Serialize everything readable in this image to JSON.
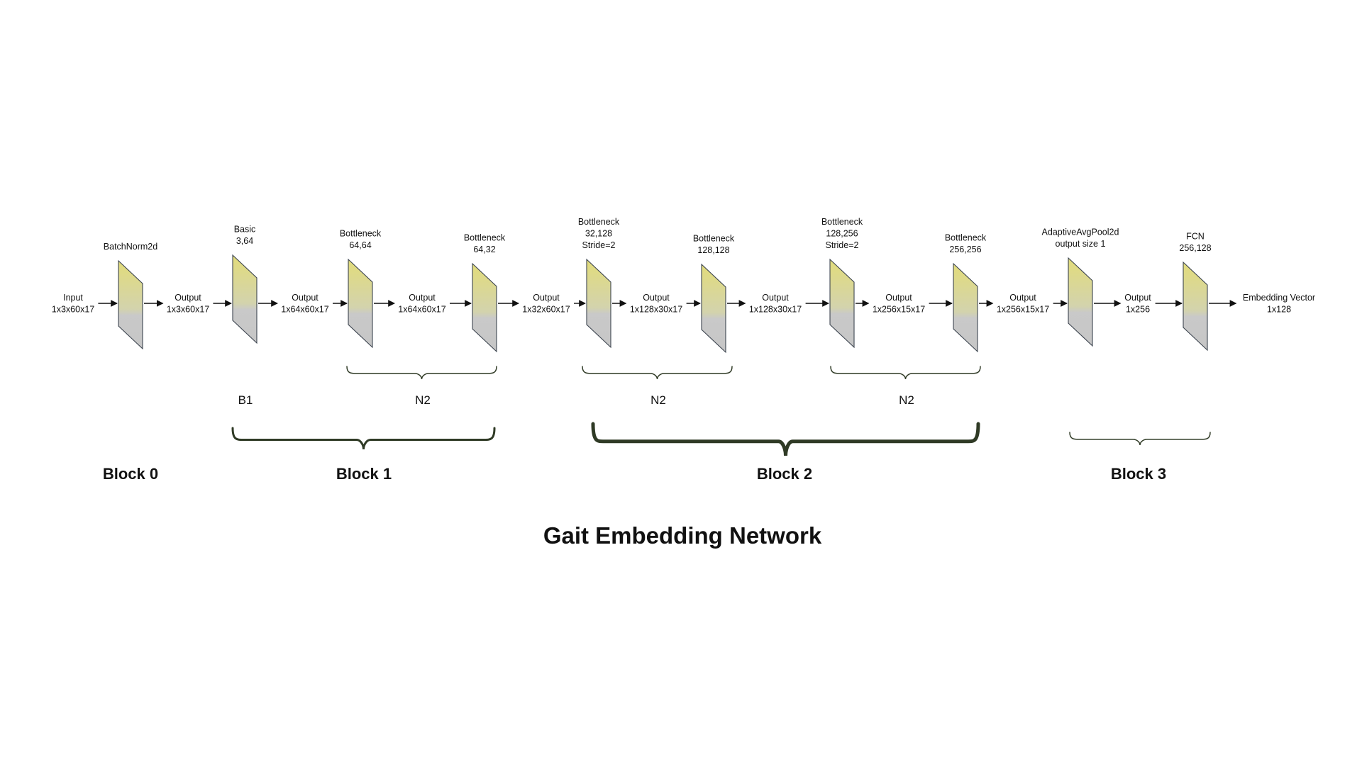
{
  "title": "Gait Embedding Network",
  "colors": {
    "layer_top": "#e2dc7a",
    "layer_bottom": "#c9c9c9",
    "brace": "#2f3a25",
    "arrow": "#111111"
  },
  "nodes": [
    {
      "id": "input",
      "kind": "text",
      "lines": [
        "Input",
        "1x3x60x17"
      ]
    },
    {
      "id": "bn",
      "kind": "layer",
      "lines": [
        "BatchNorm2d"
      ]
    },
    {
      "id": "out0",
      "kind": "text",
      "lines": [
        "Output",
        "1x3x60x17"
      ]
    },
    {
      "id": "basic",
      "kind": "layer",
      "lines": [
        "Basic",
        "3,64"
      ]
    },
    {
      "id": "out1",
      "kind": "text",
      "lines": [
        "Output",
        "1x64x60x17"
      ]
    },
    {
      "id": "bn1",
      "kind": "layer",
      "lines": [
        "Bottleneck",
        "64,64"
      ]
    },
    {
      "id": "out2",
      "kind": "text",
      "lines": [
        "Output",
        "1x64x60x17"
      ]
    },
    {
      "id": "bn2",
      "kind": "layer",
      "lines": [
        "Bottleneck",
        "64,32"
      ]
    },
    {
      "id": "out3",
      "kind": "text",
      "lines": [
        "Output",
        "1x32x60x17"
      ]
    },
    {
      "id": "bn3",
      "kind": "layer",
      "lines": [
        "Bottleneck",
        "32,128",
        "Stride=2"
      ]
    },
    {
      "id": "out4",
      "kind": "text",
      "lines": [
        "Output",
        "1x128x30x17"
      ]
    },
    {
      "id": "bn4",
      "kind": "layer",
      "lines": [
        "Bottleneck",
        "128,128"
      ]
    },
    {
      "id": "out5",
      "kind": "text",
      "lines": [
        "Output",
        "1x128x30x17"
      ]
    },
    {
      "id": "bn5",
      "kind": "layer",
      "lines": [
        "Bottleneck",
        "128,256",
        "Stride=2"
      ]
    },
    {
      "id": "out6",
      "kind": "text",
      "lines": [
        "Output",
        "1x256x15x17"
      ]
    },
    {
      "id": "bn6",
      "kind": "layer",
      "lines": [
        "Bottleneck",
        "256,256"
      ]
    },
    {
      "id": "out7",
      "kind": "text",
      "lines": [
        "Output",
        "1x256x15x17"
      ]
    },
    {
      "id": "pool",
      "kind": "layer",
      "lines": [
        "AdaptiveAvgPool2d",
        "output size 1"
      ]
    },
    {
      "id": "out8",
      "kind": "text",
      "lines": [
        "Output",
        "1x256"
      ]
    },
    {
      "id": "fcn",
      "kind": "layer",
      "lines": [
        "FCN",
        "256,128"
      ]
    },
    {
      "id": "emb",
      "kind": "text",
      "lines": [
        "Embedding Vector",
        "1x128"
      ]
    }
  ],
  "group_labels": [
    "B1",
    "N2",
    "N2",
    "N2"
  ],
  "blocks": [
    "Block 0",
    "Block 1",
    "Block 2",
    "Block 3"
  ]
}
